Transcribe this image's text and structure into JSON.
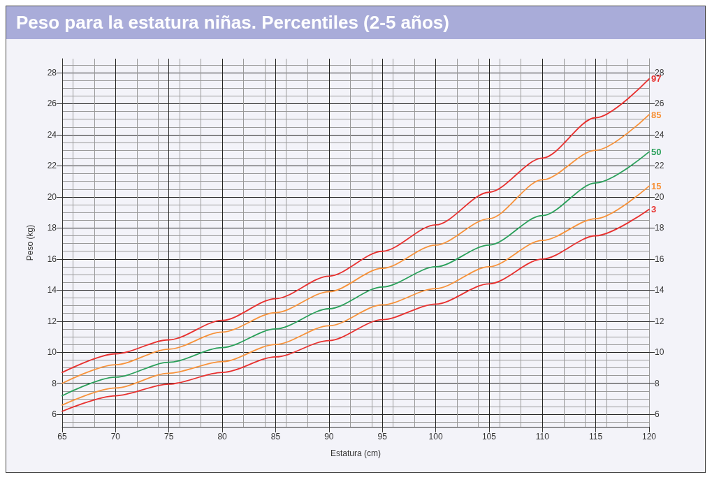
{
  "chart_data": {
    "type": "line",
    "title": "Peso para la estatura niñas. Percentiles (2-5 años)",
    "xlabel": "Estatura (cm)",
    "ylabel": "Peso (kg)",
    "x": [
      65,
      70,
      75,
      80,
      85,
      90,
      95,
      100,
      105,
      110,
      115,
      120
    ],
    "series": [
      {
        "name": "97",
        "color": "#e8312f",
        "values": [
          8.7,
          9.9,
          10.8,
          12.05,
          13.45,
          14.9,
          16.5,
          18.2,
          20.3,
          22.5,
          25.1,
          27.6
        ]
      },
      {
        "name": "85",
        "color": "#f7923a",
        "values": [
          8.0,
          9.2,
          10.2,
          11.3,
          12.55,
          13.9,
          15.4,
          16.9,
          18.6,
          21.1,
          23.0,
          25.3
        ]
      },
      {
        "name": "50",
        "color": "#2aa05a",
        "values": [
          7.2,
          8.4,
          9.35,
          10.3,
          11.5,
          12.8,
          14.2,
          15.5,
          16.9,
          18.8,
          20.9,
          22.9
        ]
      },
      {
        "name": "15",
        "color": "#f7923a",
        "values": [
          6.6,
          7.7,
          8.65,
          9.4,
          10.5,
          11.7,
          13.05,
          14.1,
          15.5,
          17.2,
          18.6,
          20.7
        ]
      },
      {
        "name": "3",
        "color": "#e8312f",
        "values": [
          6.2,
          7.2,
          7.95,
          8.7,
          9.7,
          10.75,
          12.1,
          13.1,
          14.4,
          16.0,
          17.5,
          19.2
        ]
      }
    ],
    "xlim": [
      65,
      120
    ],
    "xticks": [
      65,
      70,
      75,
      80,
      85,
      90,
      95,
      100,
      105,
      110,
      115,
      120
    ],
    "ylim": [
      5.2,
      28.9
    ],
    "yticks": [
      6,
      8,
      10,
      12,
      14,
      16,
      18,
      20,
      22,
      24,
      26,
      28
    ],
    "y2lim": [
      5.2,
      28.9
    ],
    "y2ticks": [
      6,
      8,
      10,
      12,
      14,
      16,
      18,
      20,
      22,
      24,
      26,
      28
    ],
    "grid": true,
    "marker": "none",
    "line_style": "solid",
    "legend": false
  }
}
